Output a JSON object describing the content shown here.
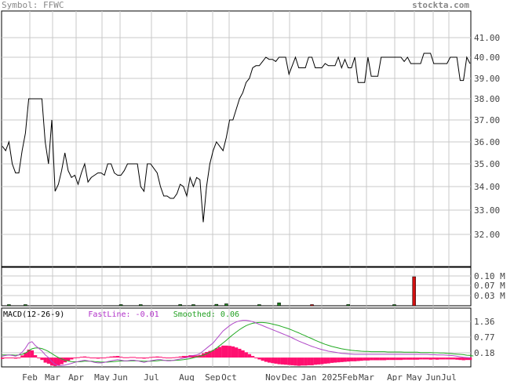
{
  "header": {
    "symbol_label": "Symbol: FFWC",
    "brand": "stockta.com"
  },
  "colors": {
    "price_line": "#000000",
    "grid": "#c8c8c8",
    "volume_up": "#207f20",
    "volume_down": "#d01010",
    "macd_line": "#b04ac8",
    "signal_line": "#22aa22",
    "histogram": "#ff1070",
    "legend_macd": "#000000",
    "legend_fast": "#b030c8",
    "legend_smooth": "#20a020"
  },
  "chart_data": [
    {
      "type": "line",
      "title": "",
      "ylabel": "",
      "ylim": [
        31.0,
        42.0
      ],
      "y_ticks": [
        "41.00",
        "40.00",
        "39.00",
        "38.00",
        "37.00",
        "36.00",
        "35.00",
        "34.00",
        "33.00",
        "32.00"
      ],
      "x_tick_labels": [
        "Feb",
        "Mar",
        "Apr",
        "May",
        "Jun",
        "Jul",
        "Aug",
        "Sep",
        "Oct",
        "Nov",
        "Dec",
        "Jan 2025",
        "Feb",
        "Mar",
        "Apr",
        "May",
        "Jun",
        "Jul"
      ],
      "grid": true,
      "series": [
        {
          "values": [
            35.8,
            35.6,
            36.0,
            35.0,
            34.6,
            34.6,
            35.6,
            36.4,
            38.0,
            38.0,
            38.0,
            38.0,
            38.0,
            36.0,
            35.0,
            37.0,
            33.8,
            34.1,
            34.7,
            35.5,
            34.7,
            34.4,
            34.5,
            34.1,
            34.6,
            35.0,
            34.2,
            34.4,
            34.5,
            34.6,
            34.6,
            34.5,
            35.0,
            35.0,
            34.6,
            34.5,
            34.5,
            34.7,
            35.0,
            35.0,
            35.0,
            35.0,
            34.0,
            33.8,
            35.0,
            35.0,
            34.8,
            34.6,
            34.0,
            33.6,
            33.6,
            33.5,
            33.5,
            33.7,
            34.1,
            34.0,
            33.6,
            34.4,
            34.0,
            34.4,
            34.3,
            32.5,
            34.0,
            35.0,
            35.6,
            36.0,
            35.8,
            35.6,
            36.2,
            37.0,
            37.0,
            37.5,
            38.0,
            38.3,
            38.8,
            39.0,
            39.5,
            39.6,
            39.6,
            39.8,
            40.0,
            39.9,
            39.9,
            39.8,
            40.0,
            40.0,
            40.0,
            39.2,
            39.6,
            40.0,
            39.5,
            39.5,
            39.5,
            40.0,
            40.0,
            39.5,
            39.5,
            39.5,
            39.7,
            39.6,
            39.6,
            39.6,
            40.0,
            39.5,
            39.9,
            39.5,
            39.5,
            40.0,
            38.8,
            38.8,
            38.8,
            40.0,
            39.1,
            39.1,
            39.1,
            40.0,
            40.0,
            40.0,
            40.0,
            40.0,
            40.0,
            40.0,
            39.8,
            40.0,
            39.7,
            39.7,
            39.7,
            39.7,
            40.2,
            40.2,
            40.2,
            39.7,
            39.7,
            39.7,
            39.7,
            39.7,
            40.0,
            40.0,
            40.0,
            38.9,
            38.9,
            40.0,
            39.7
          ]
        }
      ]
    },
    {
      "type": "bar",
      "title": "",
      "ylabel": "",
      "ylim": [
        0,
        0.15
      ],
      "y_ticks": [
        "0.10 M",
        "0.07 M",
        "0.03 M"
      ],
      "grid": true,
      "series": [
        {
          "name": "volume",
          "values": [
            0,
            0,
            0.003,
            0,
            0,
            0,
            0,
            0.002,
            0,
            0,
            0,
            0,
            0,
            0,
            0,
            0,
            0,
            0,
            0,
            0,
            0,
            0,
            0,
            0,
            0,
            0,
            0,
            0,
            0,
            0,
            0,
            0,
            0,
            0,
            0,
            0,
            0.002,
            0,
            0,
            0,
            0,
            0,
            0.003,
            0,
            0,
            0,
            0,
            0,
            0,
            0,
            0,
            0,
            0,
            0,
            0.005,
            0,
            0,
            0,
            0.003,
            0,
            0,
            0,
            0,
            0,
            0,
            0.006,
            0,
            0,
            0.008,
            0,
            0,
            0,
            0,
            0,
            0,
            0,
            0,
            0,
            0.004,
            0,
            0,
            0,
            0,
            0,
            0.012,
            0,
            0,
            0,
            0,
            0,
            0,
            0,
            0,
            0,
            0.002,
            0,
            0,
            0,
            0,
            0,
            0,
            0,
            0,
            0,
            0,
            0.005,
            0,
            0,
            0,
            0,
            0,
            0,
            0,
            0,
            0,
            0,
            0,
            0,
            0,
            0.002,
            0,
            0,
            0,
            0,
            0,
            0.118,
            0,
            0,
            0,
            0,
            0,
            0,
            0,
            0,
            0,
            0,
            0,
            0,
            0,
            0,
            0,
            0,
            0,
            0,
            0,
            0,
            0,
            0,
            0
          ],
          "directions": [
            "up",
            "up",
            "up",
            "up",
            "up",
            "up",
            "up",
            "up",
            "up",
            "up",
            "up",
            "up",
            "up",
            "up",
            "up",
            "up",
            "up",
            "up",
            "up",
            "up",
            "up",
            "up",
            "up",
            "up",
            "up",
            "up",
            "up",
            "up",
            "up",
            "up",
            "up",
            "up",
            "up",
            "up",
            "up",
            "up",
            "up",
            "up",
            "up",
            "up",
            "up",
            "up",
            "up",
            "up",
            "up",
            "up",
            "up",
            "up",
            "up",
            "up",
            "up",
            "up",
            "up",
            "up",
            "up",
            "up",
            "up",
            "up",
            "up",
            "up",
            "up",
            "up",
            "up",
            "up",
            "up",
            "up",
            "up",
            "up",
            "up",
            "up",
            "up",
            "up",
            "up",
            "up",
            "up",
            "up",
            "up",
            "up",
            "up",
            "up",
            "up",
            "up",
            "up",
            "up",
            "up",
            "up",
            "up",
            "up",
            "up",
            "up",
            "up",
            "up",
            "up",
            "up",
            "down",
            "up",
            "up",
            "up",
            "up",
            "up",
            "up",
            "up",
            "up",
            "up",
            "up",
            "up",
            "up",
            "up",
            "up",
            "up",
            "up",
            "up",
            "up",
            "up",
            "up",
            "up",
            "up",
            "up",
            "up",
            "up",
            "up",
            "up",
            "up",
            "up",
            "up",
            "down",
            "up",
            "up",
            "up",
            "up",
            "up",
            "up",
            "up",
            "up",
            "up",
            "up",
            "up",
            "up",
            "up",
            "up",
            "up",
            "up",
            "up",
            "up",
            "up",
            "up"
          ]
        }
      ]
    },
    {
      "type": "line",
      "title": "",
      "ylim": [
        -0.5,
        1.75
      ],
      "y_ticks": [
        "1.36",
        "0.77",
        "0.18"
      ],
      "grid": true,
      "legend": {
        "label": "MACD(12-26-9)",
        "fast": "FastLine: -0.01",
        "smoothed": "Smoothed: 0.06"
      },
      "series": [
        {
          "name": "FastLine",
          "values": [
            0.05,
            0.08,
            0.1,
            0.08,
            0.05,
            0.1,
            0.2,
            0.35,
            0.55,
            0.6,
            0.45,
            0.35,
            0.25,
            0.1,
            0.0,
            -0.15,
            -0.25,
            -0.3,
            -0.3,
            -0.28,
            -0.25,
            -0.22,
            -0.18,
            -0.15,
            -0.12,
            -0.1,
            -0.12,
            -0.15,
            -0.18,
            -0.2,
            -0.2,
            -0.18,
            -0.15,
            -0.12,
            -0.1,
            -0.08,
            -0.1,
            -0.12,
            -0.12,
            -0.1,
            -0.1,
            -0.12,
            -0.15,
            -0.18,
            -0.15,
            -0.12,
            -0.1,
            -0.08,
            -0.08,
            -0.1,
            -0.12,
            -0.12,
            -0.1,
            -0.08,
            -0.05,
            -0.02,
            0.0,
            0.05,
            0.08,
            0.1,
            0.15,
            0.25,
            0.35,
            0.45,
            0.55,
            0.7,
            0.85,
            1.0,
            1.1,
            1.2,
            1.28,
            1.34,
            1.38,
            1.4,
            1.4,
            1.38,
            1.35,
            1.3,
            1.25,
            1.2,
            1.15,
            1.1,
            1.05,
            1.0,
            0.95,
            0.9,
            0.85,
            0.8,
            0.74,
            0.68,
            0.62,
            0.57,
            0.52,
            0.47,
            0.42,
            0.38,
            0.34,
            0.3,
            0.27,
            0.24,
            0.22,
            0.2,
            0.18,
            0.16,
            0.15,
            0.14,
            0.13,
            0.12,
            0.12,
            0.12,
            0.12,
            0.12,
            0.12,
            0.12,
            0.12,
            0.12,
            0.12,
            0.12,
            0.12,
            0.12,
            0.12,
            0.12,
            0.12,
            0.12,
            0.12,
            0.12,
            0.12,
            0.12,
            0.12,
            0.12,
            0.11,
            0.11,
            0.1,
            0.1,
            0.1,
            0.09,
            0.08,
            0.07,
            0.05,
            0.03,
            0.01,
            0.0,
            -0.01
          ]
        },
        {
          "name": "Smoothed",
          "values": [
            0.1,
            0.1,
            0.1,
            0.1,
            0.09,
            0.1,
            0.12,
            0.17,
            0.25,
            0.33,
            0.36,
            0.36,
            0.34,
            0.29,
            0.23,
            0.15,
            0.07,
            0.0,
            -0.05,
            -0.1,
            -0.13,
            -0.15,
            -0.16,
            -0.16,
            -0.15,
            -0.14,
            -0.14,
            -0.14,
            -0.15,
            -0.16,
            -0.17,
            -0.17,
            -0.17,
            -0.16,
            -0.15,
            -0.14,
            -0.13,
            -0.13,
            -0.13,
            -0.12,
            -0.12,
            -0.12,
            -0.13,
            -0.14,
            -0.14,
            -0.14,
            -0.13,
            -0.12,
            -0.11,
            -0.11,
            -0.11,
            -0.11,
            -0.11,
            -0.1,
            -0.09,
            -0.08,
            -0.06,
            -0.04,
            -0.01,
            0.02,
            0.05,
            0.09,
            0.14,
            0.2,
            0.27,
            0.35,
            0.45,
            0.55,
            0.65,
            0.76,
            0.86,
            0.96,
            1.05,
            1.13,
            1.2,
            1.25,
            1.29,
            1.31,
            1.32,
            1.32,
            1.31,
            1.29,
            1.26,
            1.23,
            1.2,
            1.16,
            1.12,
            1.08,
            1.03,
            0.98,
            0.93,
            0.87,
            0.82,
            0.76,
            0.71,
            0.65,
            0.6,
            0.55,
            0.5,
            0.46,
            0.42,
            0.39,
            0.36,
            0.33,
            0.31,
            0.29,
            0.27,
            0.26,
            0.25,
            0.24,
            0.23,
            0.23,
            0.22,
            0.22,
            0.22,
            0.22,
            0.22,
            0.21,
            0.21,
            0.21,
            0.21,
            0.21,
            0.2,
            0.2,
            0.2,
            0.2,
            0.2,
            0.19,
            0.19,
            0.19,
            0.19,
            0.18,
            0.18,
            0.17,
            0.17,
            0.16,
            0.15,
            0.14,
            0.13,
            0.12,
            0.11,
            0.09,
            0.08,
            0.06
          ]
        }
      ]
    }
  ]
}
